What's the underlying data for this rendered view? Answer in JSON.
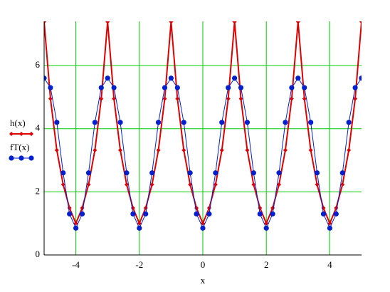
{
  "chart_data": {
    "type": "line",
    "x_label": "x",
    "x": [
      -5,
      -4.8,
      -4.6,
      -4.4,
      -4.2,
      -4,
      -3.8,
      -3.6,
      -3.4,
      -3.2,
      -3,
      -2.8,
      -2.6,
      -2.4,
      -2.2,
      -2,
      -1.8,
      -1.6,
      -1.4,
      -1.2,
      -1,
      -0.8,
      -0.6,
      -0.4,
      -0.2,
      0,
      0.2,
      0.4,
      0.6,
      0.8,
      1,
      1.2,
      1.4,
      1.6,
      1.8,
      2,
      2.2,
      2.4,
      2.6,
      2.8,
      3,
      3.2,
      3.4,
      3.6,
      3.8,
      4,
      4.2,
      4.4,
      4.6,
      4.8,
      5
    ],
    "series": [
      {
        "name": "h(x)",
        "color": "#e00000",
        "marker": "diamond",
        "values": [
          7.39,
          4.95,
          3.32,
          2.23,
          1.49,
          1,
          1.49,
          2.23,
          3.32,
          4.95,
          7.39,
          4.95,
          3.32,
          2.23,
          1.49,
          1,
          1.49,
          2.23,
          3.32,
          4.95,
          7.39,
          4.95,
          3.32,
          2.23,
          1.49,
          1,
          1.49,
          2.23,
          3.32,
          4.95,
          7.39,
          4.95,
          3.32,
          2.23,
          1.49,
          1,
          1.49,
          2.23,
          3.32,
          4.95,
          7.39,
          4.95,
          3.32,
          2.23,
          1.49,
          1,
          1.49,
          2.23,
          3.32,
          4.95,
          7.39
        ]
      },
      {
        "name": "fT(x)",
        "color": "#0020d0",
        "marker": "circle",
        "values": [
          5.6,
          5.3,
          4.2,
          2.6,
          1.3,
          0.85,
          1.3,
          2.6,
          4.2,
          5.3,
          5.6,
          5.3,
          4.2,
          2.6,
          1.3,
          0.85,
          1.3,
          2.6,
          4.2,
          5.3,
          5.6,
          5.3,
          4.2,
          2.6,
          1.3,
          0.85,
          1.3,
          2.6,
          4.2,
          5.3,
          5.6,
          5.3,
          4.2,
          2.6,
          1.3,
          0.85,
          1.3,
          2.6,
          4.2,
          5.3,
          5.6,
          5.3,
          4.2,
          2.6,
          1.3,
          0.85,
          1.3,
          2.6,
          4.2,
          5.3,
          5.6
        ]
      }
    ],
    "xlim": [
      -5,
      5
    ],
    "ylim": [
      0,
      7.4
    ],
    "xticks": [
      -4,
      -2,
      0,
      2,
      4
    ],
    "yticks": [
      0,
      2,
      4,
      6
    ],
    "grid": true,
    "grid_color": "#00cc00",
    "legend": "left"
  }
}
